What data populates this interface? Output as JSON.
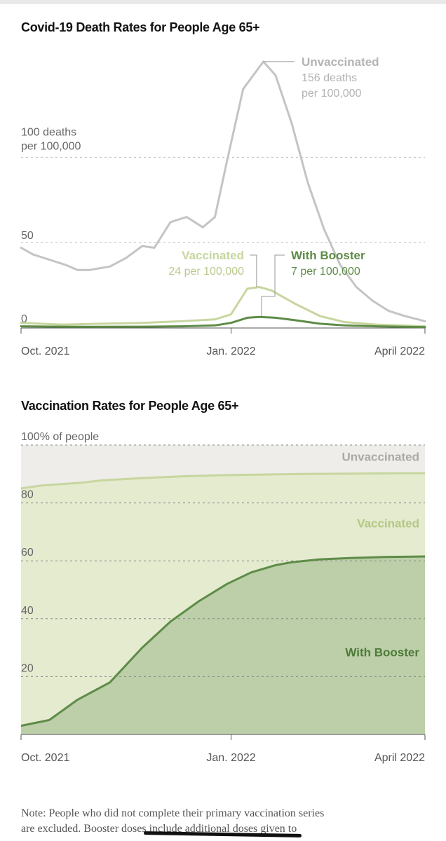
{
  "chart_data": [
    {
      "type": "line",
      "title": "Covid-19 Death Rates for People Age 65+",
      "ylabel": "deaths per 100,000",
      "ylim": [
        0,
        165
      ],
      "y_ticks": [
        {
          "value": 0,
          "label": "0"
        },
        {
          "value": 50,
          "label": "50"
        },
        {
          "value": 100,
          "label_line1": "100 deaths",
          "label_line2": "per 100,000"
        }
      ],
      "x_ticks": [
        {
          "t": 0.0,
          "label": "Oct. 2021"
        },
        {
          "t": 0.52,
          "label": "Jan. 2022"
        },
        {
          "t": 1.0,
          "label": "April 2022"
        }
      ],
      "series": [
        {
          "name": "Unvaccinated",
          "color": "#c4c4c4",
          "annotation": {
            "name": "Unvaccinated",
            "line1": "156 deaths",
            "line2": "per 100,000",
            "at_t": 0.6,
            "value": 156
          },
          "points": [
            [
              0.0,
              47
            ],
            [
              0.03,
              43
            ],
            [
              0.07,
              40
            ],
            [
              0.11,
              37
            ],
            [
              0.14,
              34
            ],
            [
              0.17,
              34
            ],
            [
              0.22,
              36
            ],
            [
              0.26,
              41
            ],
            [
              0.3,
              48
            ],
            [
              0.33,
              47
            ],
            [
              0.37,
              62
            ],
            [
              0.41,
              65
            ],
            [
              0.45,
              59
            ],
            [
              0.48,
              65
            ],
            [
              0.51,
              98
            ],
            [
              0.55,
              140
            ],
            [
              0.6,
              156
            ],
            [
              0.63,
              148
            ],
            [
              0.67,
              120
            ],
            [
              0.71,
              85
            ],
            [
              0.75,
              58
            ],
            [
              0.79,
              37
            ],
            [
              0.83,
              24
            ],
            [
              0.87,
              16
            ],
            [
              0.91,
              10
            ],
            [
              0.95,
              7
            ],
            [
              1.0,
              4
            ]
          ]
        },
        {
          "name": "Vaccinated",
          "color": "#c7d69f",
          "annotation": {
            "name": "Vaccinated",
            "line1": "24 per 100,000",
            "at_t": 0.59,
            "value": 24
          },
          "points": [
            [
              0.0,
              3
            ],
            [
              0.1,
              2
            ],
            [
              0.2,
              2.5
            ],
            [
              0.3,
              3
            ],
            [
              0.4,
              4
            ],
            [
              0.48,
              5
            ],
            [
              0.52,
              8
            ],
            [
              0.56,
              23
            ],
            [
              0.59,
              24
            ],
            [
              0.62,
              22
            ],
            [
              0.68,
              14
            ],
            [
              0.74,
              7
            ],
            [
              0.8,
              3.5
            ],
            [
              0.88,
              2
            ],
            [
              1.0,
              1
            ]
          ]
        },
        {
          "name": "With Booster",
          "color": "#5e8c47",
          "annotation": {
            "name": "With Booster",
            "line1": "7 per 100,000",
            "at_t": 0.59,
            "value": 7
          },
          "points": [
            [
              0.0,
              1
            ],
            [
              0.1,
              0.8
            ],
            [
              0.2,
              0.7
            ],
            [
              0.3,
              0.8
            ],
            [
              0.4,
              1
            ],
            [
              0.48,
              1.5
            ],
            [
              0.52,
              3
            ],
            [
              0.56,
              6
            ],
            [
              0.59,
              6.5
            ],
            [
              0.63,
              6
            ],
            [
              0.68,
              4.5
            ],
            [
              0.74,
              2.5
            ],
            [
              0.8,
              1.5
            ],
            [
              0.88,
              1
            ],
            [
              1.0,
              0.5
            ]
          ]
        }
      ]
    },
    {
      "type": "area",
      "title": "Vaccination Rates for People Age 65+",
      "ylabel": "% of people",
      "ylim": [
        0,
        100
      ],
      "y_ticks": [
        {
          "value": 20,
          "label": "20"
        },
        {
          "value": 40,
          "label": "40"
        },
        {
          "value": 60,
          "label": "60"
        },
        {
          "value": 80,
          "label": "80"
        },
        {
          "value": 100,
          "label": "100% of people"
        }
      ],
      "x_ticks": [
        {
          "t": 0.0,
          "label": "Oct. 2021"
        },
        {
          "t": 0.52,
          "label": "Jan. 2022"
        },
        {
          "t": 1.0,
          "label": "April 2022"
        }
      ],
      "series": [
        {
          "name": "Unvaccinated",
          "color": "#eeede9",
          "label_value": 96,
          "points": [
            [
              0.0,
              100
            ],
            [
              1.0,
              100
            ]
          ]
        },
        {
          "name": "Vaccinated",
          "color": "#e4ebcf",
          "line_color": "#c7d69f",
          "label_value": 73,
          "points": [
            [
              0.0,
              85
            ],
            [
              0.05,
              86
            ],
            [
              0.1,
              86.5
            ],
            [
              0.15,
              87
            ],
            [
              0.2,
              87.8
            ],
            [
              0.3,
              88.6
            ],
            [
              0.4,
              89.2
            ],
            [
              0.5,
              89.6
            ],
            [
              0.6,
              89.8
            ],
            [
              0.7,
              90
            ],
            [
              0.8,
              90.1
            ],
            [
              0.9,
              90.2
            ],
            [
              1.0,
              90.3
            ]
          ]
        },
        {
          "name": "With Booster",
          "color": "#bccfa9",
          "line_color": "#5e8c47",
          "label_value": 28.5,
          "points": [
            [
              0.0,
              3
            ],
            [
              0.07,
              5
            ],
            [
              0.14,
              12
            ],
            [
              0.22,
              18
            ],
            [
              0.3,
              30
            ],
            [
              0.37,
              39
            ],
            [
              0.44,
              46
            ],
            [
              0.51,
              52
            ],
            [
              0.57,
              56
            ],
            [
              0.63,
              58.5
            ],
            [
              0.67,
              59.5
            ],
            [
              0.74,
              60.5
            ],
            [
              0.82,
              61
            ],
            [
              0.9,
              61.3
            ],
            [
              1.0,
              61.5
            ]
          ]
        }
      ]
    }
  ],
  "note": {
    "line1": "Note: People who did not complete their primary vaccination series",
    "line2": "are excluded. Booster doses include additional doses given to"
  }
}
